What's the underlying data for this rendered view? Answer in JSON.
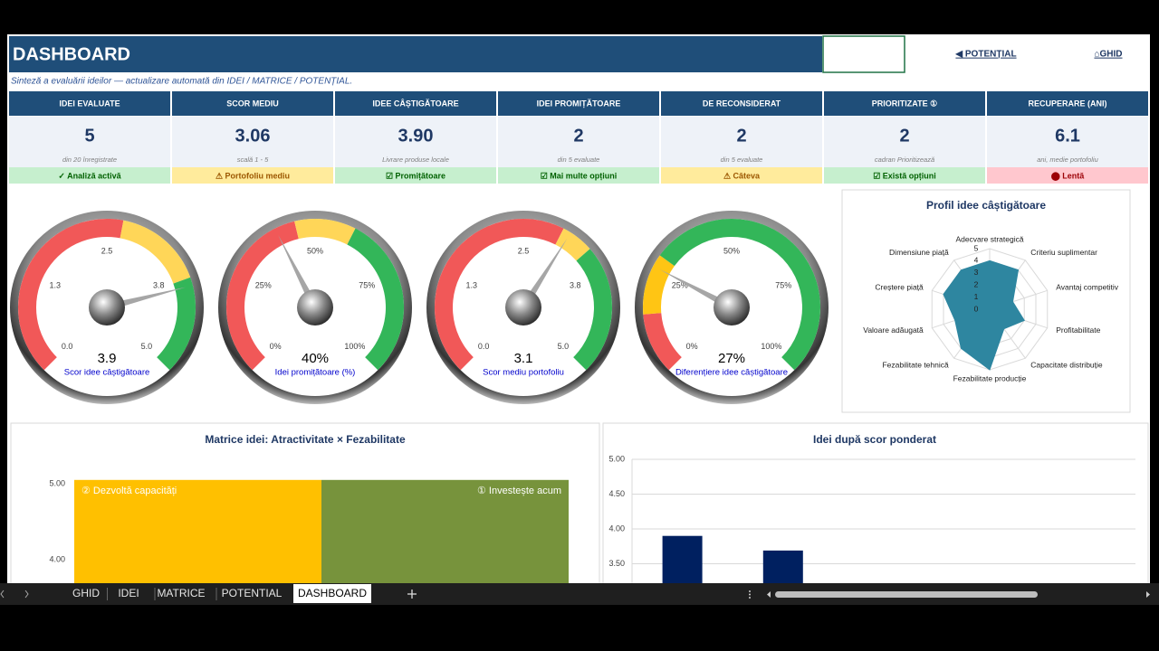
{
  "header": {
    "title": "DASHBOARD",
    "links": [
      "◀ POTENȚIAL",
      "⌂GHID"
    ],
    "subtitle": "Sinteză a evaluării ideilor — actualizare automată din IDEI / MATRICE / POTENȚIAL."
  },
  "kpis": [
    {
      "label": "IDEI EVALUATE",
      "value": "5",
      "note": "din 20 înregistrate",
      "status": "✓ Analiză activă",
      "tone": "good"
    },
    {
      "label": "SCOR MEDIU",
      "value": "3.06",
      "note": "scală 1 - 5",
      "status": "⚠ Portofoliu mediu",
      "tone": "warn"
    },
    {
      "label": "IDEE CÂȘTIGĂTOARE",
      "value": "3.90",
      "note": "Livrare produse locale",
      "status": "☑ Promițătoare",
      "tone": "good"
    },
    {
      "label": "IDEI PROMIȚĂTOARE",
      "value": "2",
      "note": "din 5 evaluate",
      "status": "☑ Mai multe opțiuni",
      "tone": "good"
    },
    {
      "label": "DE RECONSIDERAT",
      "value": "2",
      "note": "din 5 evaluate",
      "status": "⚠ Câteva",
      "tone": "warn"
    },
    {
      "label": "PRIORITIZATE ①",
      "value": "2",
      "note": "cadran Prioritizează",
      "status": "☑ Există opțiuni",
      "tone": "good"
    },
    {
      "label": "RECUPERARE (ANI)",
      "value": "6.1",
      "note": "ani, medie portofoliu",
      "status": "⬤ Lentă",
      "tone": "bad"
    }
  ],
  "tabs": [
    "GHID",
    "IDEI",
    "MATRICE",
    "POTENTIAL",
    "DASHBOARD"
  ],
  "active_tab": 4,
  "chart_data": [
    {
      "type": "gauge",
      "title": "Scor idee câștigătoare",
      "value": 3.9,
      "ylim": [
        0,
        5
      ],
      "yticks": [
        {
          "value": 0,
          "label": "0.0"
        },
        {
          "value": 1.25,
          "label": "1.3"
        },
        {
          "value": 2.5,
          "label": "2.5"
        },
        {
          "value": 3.75,
          "label": "3.8"
        },
        {
          "value": 5,
          "label": "5.0"
        }
      ],
      "bands": [
        {
          "from": 0,
          "to": 2.7,
          "color": "#f04a4a"
        },
        {
          "from": 2.7,
          "to": 3.8,
          "color": "#ffd24a"
        },
        {
          "from": 3.8,
          "to": 5,
          "color": "#22b04b"
        }
      ]
    },
    {
      "type": "gauge",
      "title": "Idei promițătoare (%)",
      "value": 40,
      "value_label": "40%",
      "ylim": [
        0,
        100
      ],
      "yticks": [
        {
          "value": 0,
          "label": "0%"
        },
        {
          "value": 25,
          "label": "25%"
        },
        {
          "value": 50,
          "label": "50%"
        },
        {
          "value": 75,
          "label": "75%"
        },
        {
          "value": 100,
          "label": "100%"
        }
      ],
      "bands": [
        {
          "from": 0,
          "to": 45,
          "color": "#f04a4a"
        },
        {
          "from": 45,
          "to": 60,
          "color": "#ffd24a"
        },
        {
          "from": 60,
          "to": 100,
          "color": "#22b04b"
        }
      ]
    },
    {
      "type": "gauge",
      "title": "Scor mediu portofoliu",
      "value": 3.1,
      "ylim": [
        0,
        5
      ],
      "yticks": [
        {
          "value": 0,
          "label": "0.0"
        },
        {
          "value": 1.25,
          "label": "1.3"
        },
        {
          "value": 2.5,
          "label": "2.5"
        },
        {
          "value": 3.75,
          "label": "3.8"
        },
        {
          "value": 5,
          "label": "5.0"
        }
      ],
      "bands": [
        {
          "from": 0,
          "to": 3,
          "color": "#f04a4a"
        },
        {
          "from": 3,
          "to": 3.4,
          "color": "#ffd24a"
        },
        {
          "from": 3.4,
          "to": 5,
          "color": "#22b04b"
        }
      ]
    },
    {
      "type": "gauge",
      "title": "Diferențiere idee câștigătoare",
      "value": 27,
      "value_label": "27%",
      "ylim": [
        0,
        100
      ],
      "yticks": [
        {
          "value": 0,
          "label": "0%"
        },
        {
          "value": 25,
          "label": "25%"
        },
        {
          "value": 50,
          "label": "50%"
        },
        {
          "value": 75,
          "label": "75%"
        },
        {
          "value": 100,
          "label": "100%"
        }
      ],
      "bands": [
        {
          "from": 0,
          "to": 15,
          "color": "#f04a4a"
        },
        {
          "from": 15,
          "to": 30,
          "color": "#ffc000"
        },
        {
          "from": 30,
          "to": 100,
          "color": "#22b04b"
        }
      ]
    },
    {
      "type": "radar",
      "title": "Profil idee câștigătoare",
      "categories": [
        "Adecvare strategică",
        "Criteriu suplimentar",
        "Avantaj competitiv",
        "Profitabilitate",
        "Capacitate distribuție",
        "Fezabilitate producție",
        "Fezabilitate tehnică",
        "Valoare adăugată",
        "Creștere piață",
        "Dimensiune piață"
      ],
      "values": [
        4,
        4,
        2,
        3,
        2,
        5,
        4,
        3,
        4,
        4
      ],
      "color": "#2e86a0",
      "ylim": [
        0,
        5
      ],
      "yticks": [
        0,
        1,
        2,
        3,
        4,
        5
      ]
    },
    {
      "type": "matrix",
      "title": "Matrice idei: Atractivitate × Fezabilitate",
      "xlim": [
        1,
        5
      ],
      "ylim": [
        3.5,
        5.05
      ],
      "yticks": [
        {
          "value": 5,
          "label": "5.00"
        },
        {
          "value": 4,
          "label": "4.00"
        }
      ],
      "quadrants": [
        {
          "label": "② Dezvoltă capacități",
          "color": "#ffc000",
          "x": [
            1,
            3
          ],
          "y": [
            3,
            5
          ]
        },
        {
          "label": "① Investește acum",
          "color": "#77933c",
          "x": [
            3,
            5
          ],
          "y": [
            3,
            5
          ]
        }
      ]
    },
    {
      "type": "bar",
      "title": "Idei după scor ponderat",
      "categories": [
        null,
        null,
        null,
        null,
        null
      ],
      "values": [
        3.9,
        3.69,
        null,
        null,
        null
      ],
      "color": "#002060",
      "ylim": [
        3.2,
        5
      ],
      "grid": true,
      "yticks": [
        {
          "value": 5,
          "label": "5.00"
        },
        {
          "value": 4.5,
          "label": "4.50"
        },
        {
          "value": 4,
          "label": "4.00"
        },
        {
          "value": 3.5,
          "label": "3.50"
        }
      ]
    }
  ]
}
